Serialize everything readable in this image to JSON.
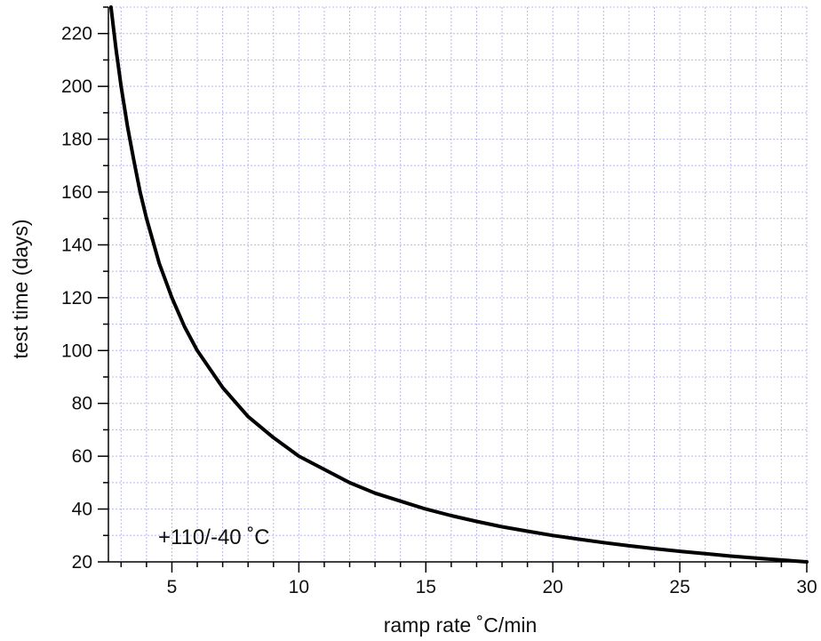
{
  "chart_data": {
    "type": "line",
    "xlabel": "ramp rate ˚C/min",
    "ylabel": "test time (days)",
    "annotation": "+110/-40 ˚C",
    "xlim": [
      2.5,
      30
    ],
    "ylim": [
      20,
      230
    ],
    "x_ticks": [
      5,
      10,
      15,
      20,
      25,
      30
    ],
    "y_ticks": [
      20,
      40,
      60,
      80,
      100,
      120,
      140,
      160,
      180,
      200,
      220
    ],
    "grid": true,
    "grid_color": "#b8b8ee",
    "line_color": "#000000",
    "series": [
      {
        "x": [
          2.6,
          2.8,
          3,
          3.25,
          3.5,
          3.75,
          4,
          4.5,
          5,
          5.5,
          6,
          7,
          8,
          9,
          10,
          11,
          12,
          13,
          14,
          15,
          16,
          17,
          18,
          19,
          20,
          21,
          22,
          23,
          24,
          25,
          26,
          27,
          28,
          29,
          30
        ],
        "y": [
          230,
          214,
          200,
          185,
          172,
          160,
          150,
          133,
          120,
          109,
          100,
          86,
          75,
          67,
          60,
          55,
          50,
          46,
          43,
          40,
          37.5,
          35.3,
          33.3,
          31.6,
          30,
          28.6,
          27.3,
          26.1,
          25,
          24,
          23.1,
          22.2,
          21.4,
          20.7,
          20
        ]
      }
    ]
  }
}
